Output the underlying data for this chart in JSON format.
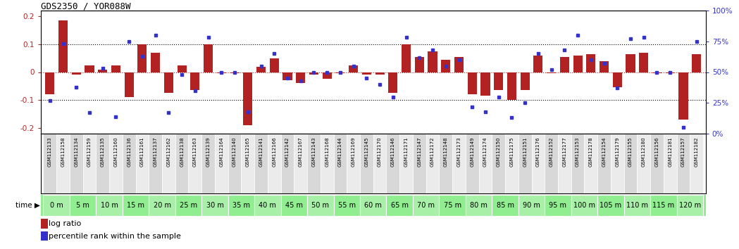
{
  "title": "GDS2350 / YOR088W",
  "samples": [
    "GSM112133",
    "GSM112158",
    "GSM112134",
    "GSM112159",
    "GSM112135",
    "GSM112160",
    "GSM112136",
    "GSM112161",
    "GSM112137",
    "GSM112162",
    "GSM112138",
    "GSM112163",
    "GSM112139",
    "GSM112164",
    "GSM112140",
    "GSM112165",
    "GSM112141",
    "GSM112166",
    "GSM112142",
    "GSM112167",
    "GSM112143",
    "GSM112168",
    "GSM112144",
    "GSM112169",
    "GSM112145",
    "GSM112170",
    "GSM112146",
    "GSM112171",
    "GSM112147",
    "GSM112172",
    "GSM112148",
    "GSM112173",
    "GSM112149",
    "GSM112174",
    "GSM112150",
    "GSM112175",
    "GSM112151",
    "GSM112176",
    "GSM112152",
    "GSM112177",
    "GSM112153",
    "GSM112178",
    "GSM112154",
    "GSM112179",
    "GSM112155",
    "GSM112180",
    "GSM112156",
    "GSM112181",
    "GSM112157",
    "GSM112182"
  ],
  "log_ratio": [
    -0.08,
    0.185,
    -0.01,
    0.025,
    0.01,
    0.025,
    -0.09,
    0.1,
    0.07,
    -0.075,
    0.025,
    -0.065,
    0.1,
    -0.005,
    -0.005,
    -0.19,
    0.02,
    0.05,
    -0.03,
    -0.04,
    -0.01,
    -0.025,
    -0.005,
    0.025,
    -0.01,
    -0.01,
    -0.075,
    0.1,
    0.055,
    0.075,
    0.045,
    0.055,
    -0.08,
    -0.085,
    -0.065,
    -0.1,
    -0.065,
    0.06,
    -0.005,
    0.055,
    0.06,
    0.065,
    0.04,
    -0.055,
    0.065,
    0.07,
    -0.005,
    -0.005,
    -0.17,
    0.065
  ],
  "percentile": [
    27,
    73,
    38,
    17,
    53,
    14,
    75,
    63,
    80,
    17,
    48,
    35,
    78,
    50,
    50,
    18,
    55,
    65,
    45,
    43,
    50,
    50,
    50,
    55,
    45,
    40,
    30,
    78,
    62,
    68,
    55,
    60,
    22,
    18,
    30,
    13,
    25,
    65,
    52,
    68,
    80,
    60,
    57,
    37,
    77,
    78,
    50,
    50,
    5,
    75
  ],
  "time_labels": [
    "0 m",
    "5 m",
    "10 m",
    "15 m",
    "20 m",
    "25 m",
    "30 m",
    "35 m",
    "40 m",
    "45 m",
    "50 m",
    "55 m",
    "60 m",
    "65 m",
    "70 m",
    "75 m",
    "80 m",
    "85 m",
    "90 m",
    "95 m",
    "100 m",
    "105 m",
    "110 m",
    "115 m",
    "120 m"
  ],
  "bar_color": "#B22222",
  "dot_color": "#3333CC",
  "ylim": [
    -0.22,
    0.22
  ],
  "y2lim": [
    0,
    100
  ],
  "yticks_left": [
    -0.2,
    -0.1,
    0.0,
    0.1,
    0.2
  ],
  "ytick_labels_left": [
    "-0.2",
    "-0.1",
    "0",
    "0.1",
    "0.2"
  ],
  "yticks_right": [
    0,
    25,
    50,
    75,
    100
  ],
  "ytick_labels_right": [
    "0%",
    "25%",
    "50%",
    "75%",
    "100%"
  ],
  "bg_color_time": "#90EE90",
  "bar_width": 0.7
}
